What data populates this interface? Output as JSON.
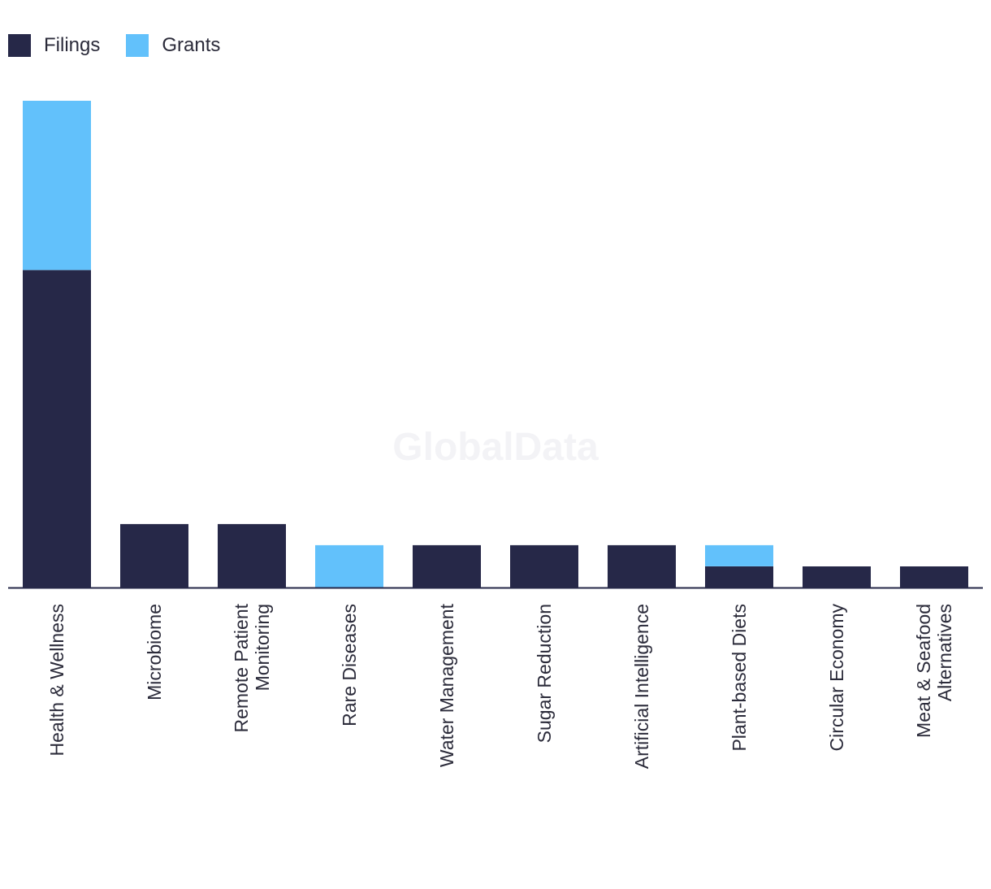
{
  "colors": {
    "filings": "#262848",
    "grants": "#62c1fb",
    "axis": "#262848",
    "text": "#2b2b3a"
  },
  "legend": {
    "filings": "Filings",
    "grants": "Grants"
  },
  "watermark": "GlobalData",
  "chart_data": {
    "type": "bar",
    "stacked": true,
    "title": "",
    "xlabel": "",
    "ylabel": "",
    "legend_position": "top-left",
    "grid": false,
    "ylim": [
      0,
      23
    ],
    "categories": [
      [
        "Health & Wellness"
      ],
      [
        "Microbiome"
      ],
      [
        "Remote Patient",
        "Monitoring"
      ],
      [
        "Rare Diseases"
      ],
      [
        "Water Management"
      ],
      [
        "Sugar Reduction"
      ],
      [
        "Artificial Intelligence"
      ],
      [
        "Plant-based Diets"
      ],
      [
        "Circular Economy"
      ],
      [
        "Meat & Seafood",
        "Alternatives"
      ]
    ],
    "series": [
      {
        "name": "Filings",
        "color": "#262848",
        "values": [
          15,
          3,
          3,
          0,
          2,
          2,
          2,
          1,
          1,
          1
        ]
      },
      {
        "name": "Grants",
        "color": "#62c1fb",
        "values": [
          8,
          0,
          0,
          2,
          0,
          0,
          0,
          1,
          0,
          0
        ]
      }
    ]
  }
}
